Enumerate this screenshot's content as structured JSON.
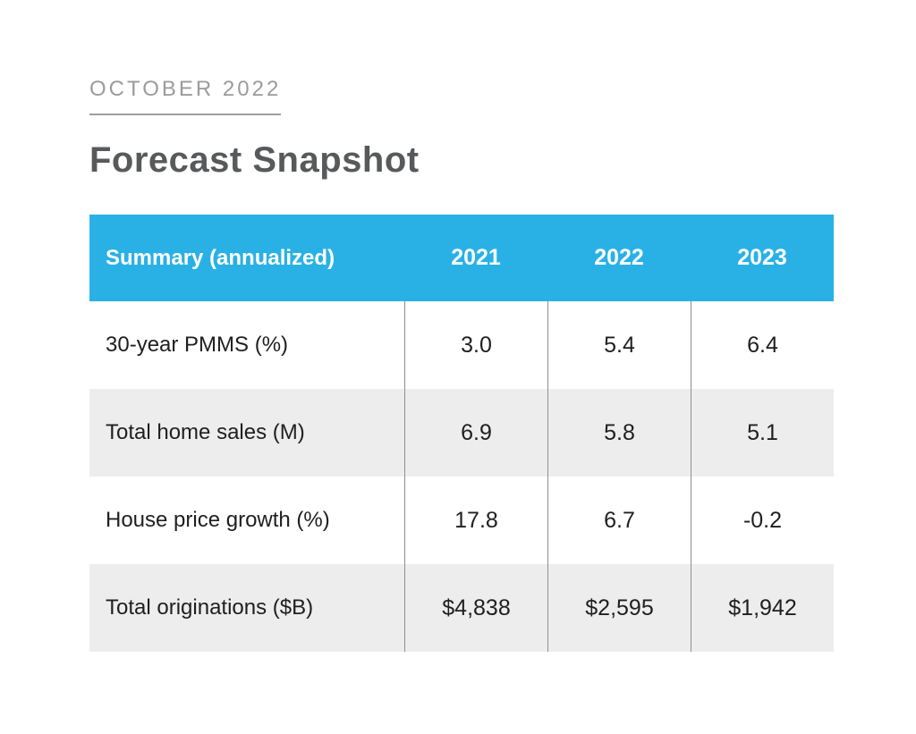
{
  "page": {
    "eyebrow": "OCTOBER 2022",
    "title": "Forecast Snapshot"
  },
  "table": {
    "header": {
      "label": "Summary (annualized)",
      "years": [
        "2021",
        "2022",
        "2023"
      ]
    },
    "rows": [
      {
        "label": "30-year PMMS (%)",
        "values": [
          "3.0",
          "5.4",
          "6.4"
        ]
      },
      {
        "label": "Total home sales (M)",
        "values": [
          "6.9",
          "5.8",
          "5.1"
        ]
      },
      {
        "label": "House price growth (%)",
        "values": [
          "17.8",
          "6.7",
          "-0.2"
        ]
      },
      {
        "label": "Total originations ($B)",
        "values": [
          "$4,838",
          "$2,595",
          "$1,942"
        ]
      }
    ]
  },
  "colors": {
    "header_bg": "#29B1E6",
    "header_text": "#FFFFFF",
    "row_alt_bg": "#EDEDED",
    "row_bg": "#FFFFFF",
    "divider": "#8F8F8F",
    "eyebrow_text": "#9B9B9B",
    "title_text": "#58595B",
    "body_text": "#1F1F1F"
  },
  "chart_data": {
    "type": "table",
    "title": "Forecast Snapshot",
    "subtitle": "OCTOBER 2022",
    "columns": [
      "Summary (annualized)",
      "2021",
      "2022",
      "2023"
    ],
    "rows": [
      [
        "30-year PMMS (%)",
        3.0,
        5.4,
        6.4
      ],
      [
        "Total home sales (M)",
        6.9,
        5.8,
        5.1
      ],
      [
        "House price growth (%)",
        17.8,
        6.7,
        -0.2
      ],
      [
        "Total originations ($B)",
        4838,
        2595,
        1942
      ]
    ]
  }
}
